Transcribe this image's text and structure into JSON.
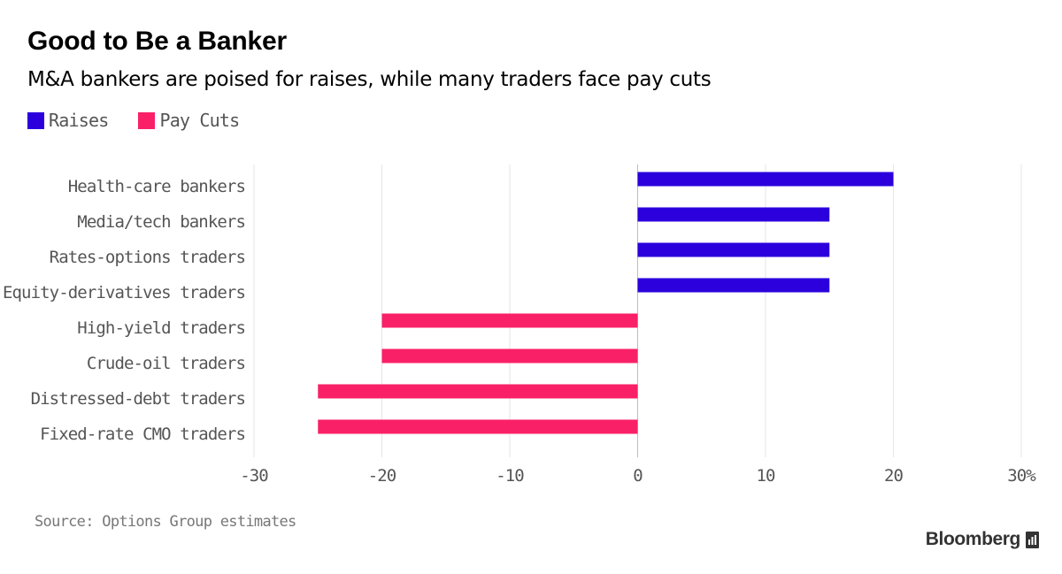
{
  "title": "Good to Be a Banker",
  "subtitle": "M&A bankers are poised for raises, while many traders face pay cuts",
  "legend": [
    {
      "label": "Raises",
      "color": "#2b00dd"
    },
    {
      "label": "Pay Cuts",
      "color": "#fa2067"
    }
  ],
  "source": "Source: Options Group estimates",
  "brand": "Bloomberg",
  "chart_data": {
    "type": "bar",
    "orientation": "horizontal",
    "categories": [
      "Health-care bankers",
      "Media/tech bankers",
      "Rates-options traders",
      "Equity-derivatives traders",
      "High-yield traders",
      "Crude-oil traders",
      "Distressed-debt traders",
      "Fixed-rate CMO traders"
    ],
    "values": [
      20,
      15,
      15,
      15,
      -20,
      -20,
      -25,
      -25
    ],
    "positive_color": "#2b00dd",
    "negative_color": "#fa2067",
    "xlim": [
      -30,
      30
    ],
    "ticks": [
      -30,
      -20,
      -10,
      0,
      10,
      20,
      30
    ],
    "tick_labels": [
      "-30",
      "-20",
      "-10",
      "0",
      "10",
      "20",
      "30%"
    ],
    "grid": true
  }
}
